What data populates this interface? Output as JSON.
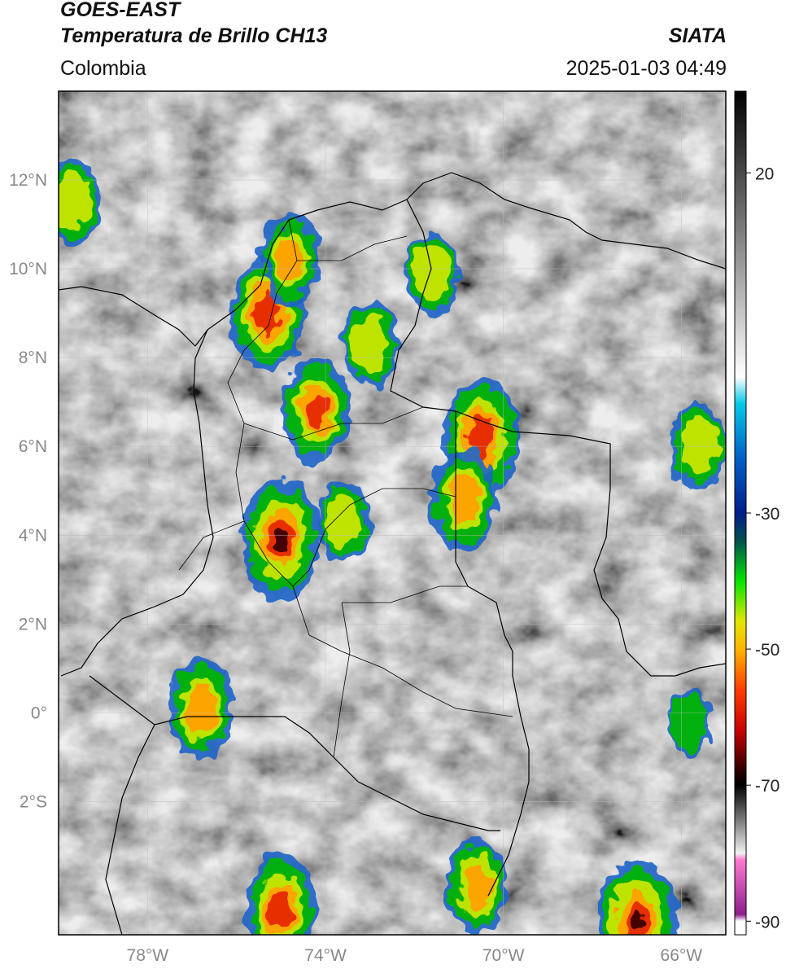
{
  "header": {
    "satellite": "GOES-EAST",
    "product": "Temperatura de Brillo CH13",
    "region": "Colombia",
    "agency": "SIATA",
    "timestamp": "2025-01-03 04:49"
  },
  "map": {
    "lon_range": [
      -80,
      -65
    ],
    "lat_range": [
      -5,
      14
    ],
    "lon_ticks": [
      {
        "value": -78,
        "label": "78°W"
      },
      {
        "value": -74,
        "label": "74°W"
      },
      {
        "value": -70,
        "label": "70°W"
      },
      {
        "value": -66,
        "label": "66°W"
      }
    ],
    "lat_ticks": [
      {
        "value": 12,
        "label": "12°N"
      },
      {
        "value": 10,
        "label": "10°N"
      },
      {
        "value": 8,
        "label": "8°N"
      },
      {
        "value": 6,
        "label": "6°N"
      },
      {
        "value": 4,
        "label": "4°N"
      },
      {
        "value": 2,
        "label": "2°N"
      },
      {
        "value": 0,
        "label": "0°"
      },
      {
        "value": -2,
        "label": "2°S"
      }
    ],
    "convective_cells": [
      {
        "lon": -75.3,
        "lat": 9.0,
        "intensity": 0.9
      },
      {
        "lon": -74.2,
        "lat": 6.8,
        "intensity": 0.75
      },
      {
        "lon": -75.0,
        "lat": 3.9,
        "intensity": 0.95
      },
      {
        "lon": -70.5,
        "lat": 6.2,
        "intensity": 0.9
      },
      {
        "lon": -70.9,
        "lat": 4.8,
        "intensity": 0.7
      },
      {
        "lon": -67.0,
        "lat": -4.7,
        "intensity": 1.0
      },
      {
        "lon": -75.0,
        "lat": -4.4,
        "intensity": 0.8
      },
      {
        "lon": -76.8,
        "lat": 0.1,
        "intensity": 0.7
      },
      {
        "lon": -74.8,
        "lat": 10.2,
        "intensity": 0.6
      },
      {
        "lon": -73.0,
        "lat": 8.3,
        "intensity": 0.55
      },
      {
        "lon": -71.6,
        "lat": 9.9,
        "intensity": 0.5
      },
      {
        "lon": -65.6,
        "lat": 6.0,
        "intensity": 0.55
      },
      {
        "lon": -65.8,
        "lat": -0.2,
        "intensity": 0.3
      },
      {
        "lon": -73.6,
        "lat": 4.3,
        "intensity": 0.5
      },
      {
        "lon": -79.7,
        "lat": 11.5,
        "intensity": 0.55
      },
      {
        "lon": -70.6,
        "lat": -3.9,
        "intensity": 0.65
      }
    ]
  },
  "colorbar": {
    "vmin": -92,
    "vmax": 32,
    "ticks": [
      {
        "value": 20,
        "label": "20"
      },
      {
        "value": -30,
        "label": "-30"
      },
      {
        "value": -50,
        "label": "-50"
      },
      {
        "value": -70,
        "label": "-70"
      },
      {
        "value": -90,
        "label": "-90"
      }
    ],
    "stops": [
      {
        "value": 32,
        "color": "#000000"
      },
      {
        "value": -10,
        "color": "#ffffff"
      },
      {
        "value": -14,
        "color": "#00c8e8"
      },
      {
        "value": -22,
        "color": "#0060c8"
      },
      {
        "value": -30,
        "color": "#001e8c"
      },
      {
        "value": -34,
        "color": "#005050"
      },
      {
        "value": -40,
        "color": "#00e600"
      },
      {
        "value": -46,
        "color": "#e6e600"
      },
      {
        "value": -50,
        "color": "#ffb400"
      },
      {
        "value": -56,
        "color": "#ff3c00"
      },
      {
        "value": -62,
        "color": "#c80000"
      },
      {
        "value": -68,
        "color": "#280000"
      },
      {
        "value": -70,
        "color": "#000000"
      },
      {
        "value": -80,
        "color": "#f0f0f0"
      },
      {
        "value": -81,
        "color": "#ff78d2"
      },
      {
        "value": -89,
        "color": "#8c1e8c"
      },
      {
        "value": -90,
        "color": "#ffffff"
      }
    ]
  }
}
